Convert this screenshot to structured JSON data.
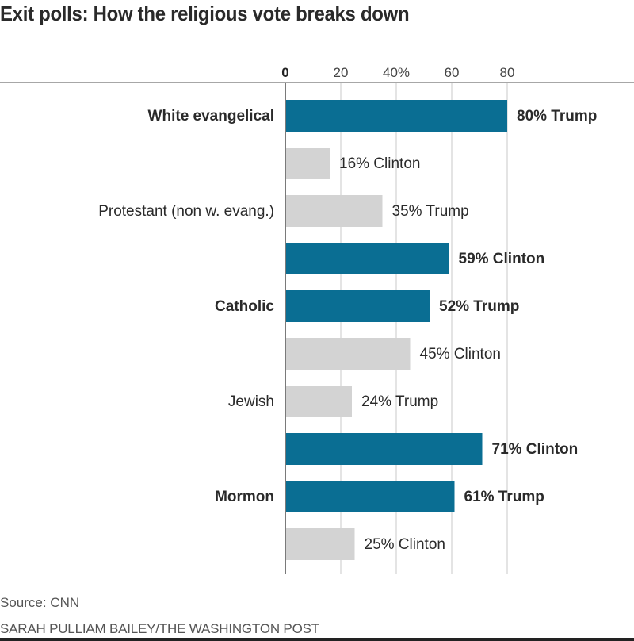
{
  "chart_data": {
    "type": "bar",
    "orientation": "horizontal",
    "title": "Exit polls: How the religious vote breaks down",
    "xlabel": "",
    "ylabel": "",
    "xlim": [
      0,
      80
    ],
    "grid": true,
    "ticks": [
      {
        "value": 0,
        "label": "0"
      },
      {
        "value": 20,
        "label": "20"
      },
      {
        "value": 40,
        "label": "40%"
      },
      {
        "value": 60,
        "label": "60"
      },
      {
        "value": 80,
        "label": "80"
      }
    ],
    "highlight_color": "#0a6e93",
    "muted_color": "#d3d3d3",
    "bars": [
      {
        "group": "White evangelical",
        "group_label": "White evangelical",
        "group_bold": true,
        "candidate": "Trump",
        "value": 80,
        "label": "80% Trump",
        "highlight": true
      },
      {
        "group": "White evangelical",
        "group_label": "",
        "group_bold": true,
        "candidate": "Clinton",
        "value": 16,
        "label": "16% Clinton",
        "highlight": false
      },
      {
        "group": "Protestant (non w. evang.)",
        "group_label": "Protestant (non w. evang.)",
        "group_bold": false,
        "candidate": "Trump",
        "value": 35,
        "label": "35% Trump",
        "highlight": false
      },
      {
        "group": "Protestant (non w. evang.)",
        "group_label": "",
        "group_bold": false,
        "candidate": "Clinton",
        "value": 59,
        "label": "59% Clinton",
        "highlight": true
      },
      {
        "group": "Catholic",
        "group_label": "Catholic",
        "group_bold": true,
        "candidate": "Trump",
        "value": 52,
        "label": "52% Trump",
        "highlight": true
      },
      {
        "group": "Catholic",
        "group_label": "",
        "group_bold": true,
        "candidate": "Clinton",
        "value": 45,
        "label": "45% Clinton",
        "highlight": false
      },
      {
        "group": "Jewish",
        "group_label": "Jewish",
        "group_bold": false,
        "candidate": "Trump",
        "value": 24,
        "label": "24% Trump",
        "highlight": false
      },
      {
        "group": "Jewish",
        "group_label": "",
        "group_bold": false,
        "candidate": "Clinton",
        "value": 71,
        "label": "71% Clinton",
        "highlight": true
      },
      {
        "group": "Mormon",
        "group_label": "Mormon",
        "group_bold": true,
        "candidate": "Trump",
        "value": 61,
        "label": "61% Trump",
        "highlight": true
      },
      {
        "group": "Mormon",
        "group_label": "",
        "group_bold": true,
        "candidate": "Clinton",
        "value": 25,
        "label": "25% Clinton",
        "highlight": false
      }
    ]
  },
  "footer": {
    "source": "Source: CNN",
    "credit": "SARAH PULLIAM BAILEY/THE WASHINGTON POST"
  }
}
